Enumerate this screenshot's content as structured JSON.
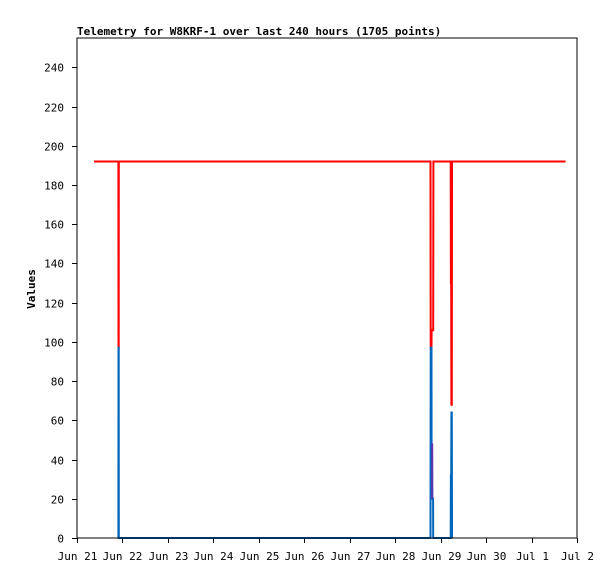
{
  "chart_data": {
    "type": "line",
    "title": "Telemetry for W8KRF-1 over last 240 hours (1705 points)",
    "xlabel": "",
    "ylabel": "Values",
    "x_axis": {
      "type": "date",
      "range": [
        "2021-06-21",
        "2021-07-02"
      ],
      "tick_labels": [
        "Jun 21",
        "Jun 22",
        "Jun 23",
        "Jun 24",
        "Jun 25",
        "Jun 26",
        "Jun 27",
        "Jun 28",
        "Jun 29",
        "Jun 30",
        "Jul 1",
        "Jul 2"
      ]
    },
    "y_axis": {
      "range": [
        0,
        255
      ],
      "tick_labels": [
        "0",
        "20",
        "40",
        "60",
        "80",
        "100",
        "120",
        "140",
        "160",
        "180",
        "200",
        "220",
        "240"
      ],
      "ticks": [
        0,
        20,
        40,
        60,
        80,
        100,
        120,
        140,
        160,
        180,
        200,
        220,
        240
      ]
    },
    "grid": false,
    "legend": "none",
    "series": [
      {
        "color": "#ff0000",
        "line_width": 2,
        "points": [
          [
            "2021-06-21T09:00",
            192
          ],
          [
            "2021-06-21T21:50",
            192
          ],
          [
            "2021-06-21T21:55",
            97
          ],
          [
            "2021-06-21T22:00",
            97
          ],
          [
            "2021-06-21T22:05",
            192
          ],
          [
            "2021-06-28T18:40",
            192
          ],
          [
            "2021-06-28T18:45",
            97
          ],
          [
            "2021-06-28T19:10",
            97
          ],
          [
            "2021-06-28T19:15",
            106
          ],
          [
            "2021-06-28T20:05",
            106
          ],
          [
            "2021-06-28T20:10",
            192
          ],
          [
            "2021-06-29T05:20",
            192
          ],
          [
            "2021-06-29T05:25",
            130
          ],
          [
            "2021-06-29T05:35",
            130
          ],
          [
            "2021-06-29T05:40",
            68
          ],
          [
            "2021-06-29T05:55",
            68
          ],
          [
            "2021-06-29T06:00",
            192
          ],
          [
            "2021-07-01T18:00",
            192
          ]
        ]
      },
      {
        "color": "#0066bb",
        "line_width": 2,
        "points": [
          [
            "2021-06-21T21:50",
            0
          ],
          [
            "2021-06-21T21:55",
            97
          ],
          [
            "2021-06-21T22:00",
            97
          ],
          [
            "2021-06-21T22:05",
            0
          ],
          [
            "2021-06-28T18:40",
            0
          ],
          [
            "2021-06-28T18:45",
            97
          ],
          [
            "2021-06-28T19:10",
            97
          ],
          [
            "2021-06-28T19:15",
            20
          ],
          [
            "2021-06-28T20:00",
            20
          ],
          [
            "2021-06-28T20:05",
            0
          ],
          [
            "2021-06-29T05:20",
            0
          ],
          [
            "2021-06-29T05:25",
            32
          ],
          [
            "2021-06-29T05:35",
            32
          ],
          [
            "2021-06-29T05:40",
            64
          ],
          [
            "2021-06-29T05:55",
            64
          ],
          [
            "2021-06-29T06:00",
            0
          ]
        ]
      },
      {
        "color": "#6633aa",
        "line_width": 1,
        "points": [
          [
            "2021-06-28T19:15",
            20
          ],
          [
            "2021-06-28T19:20",
            48
          ],
          [
            "2021-06-28T19:50",
            48
          ],
          [
            "2021-06-28T19:55",
            20
          ]
        ]
      },
      {
        "color": "#000000",
        "line_width": 1,
        "points": [
          [
            "2021-06-21T09:00",
            0
          ],
          [
            "2021-07-01T18:00",
            0
          ]
        ]
      }
    ]
  }
}
